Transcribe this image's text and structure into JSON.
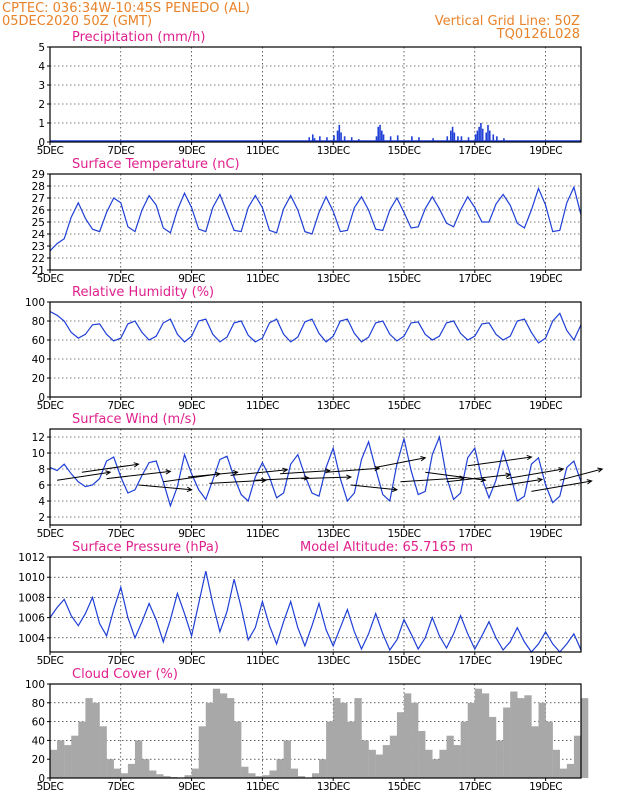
{
  "header": {
    "line1_left": "CPTEC:   036:34W-10:45S   PENEDO (AL)",
    "line2_left": "05DEC2020 50Z (GMT)",
    "line1_right": "Vertical Grid Line: 50Z",
    "line2_right": "TQ0126L028"
  },
  "colors": {
    "header": "#e8832a",
    "title": "#e0208c",
    "line": "#1f3fd6",
    "cloud": "#a8a8a8",
    "arrow": "#000000"
  },
  "chart_data": [
    {
      "id": "precip",
      "type": "bar",
      "title": "Precipitation (mm/h)",
      "ylim": [
        0,
        5
      ],
      "yticks": [
        0,
        1,
        2,
        3,
        4,
        5
      ],
      "xlim": [
        0,
        15
      ],
      "xticks": [
        "5DEC",
        "7DEC",
        "9DEC",
        "11DEC",
        "13DEC",
        "15DEC",
        "17DEC",
        "19DEC"
      ],
      "bars": [
        [
          7.3,
          0.25
        ],
        [
          7.4,
          0.4
        ],
        [
          7.45,
          0.2
        ],
        [
          7.6,
          0.3
        ],
        [
          7.8,
          0.25
        ],
        [
          8.0,
          0.35
        ],
        [
          8.1,
          0.6
        ],
        [
          8.15,
          0.9
        ],
        [
          8.2,
          0.5
        ],
        [
          8.3,
          0.3
        ],
        [
          8.5,
          0.25
        ],
        [
          8.7,
          0.15
        ],
        [
          9.2,
          0.3
        ],
        [
          9.25,
          0.8
        ],
        [
          9.3,
          0.9
        ],
        [
          9.35,
          0.6
        ],
        [
          9.4,
          0.4
        ],
        [
          9.6,
          0.3
        ],
        [
          9.8,
          0.35
        ],
        [
          10.2,
          0.3
        ],
        [
          10.4,
          0.25
        ],
        [
          10.8,
          0.2
        ],
        [
          11.2,
          0.3
        ],
        [
          11.3,
          0.6
        ],
        [
          11.35,
          0.8
        ],
        [
          11.4,
          0.5
        ],
        [
          11.5,
          0.3
        ],
        [
          11.6,
          0.3
        ],
        [
          11.8,
          0.25
        ],
        [
          12.0,
          0.4
        ],
        [
          12.05,
          0.6
        ],
        [
          12.1,
          0.8
        ],
        [
          12.15,
          1.0
        ],
        [
          12.2,
          0.7
        ],
        [
          12.3,
          0.5
        ],
        [
          12.35,
          0.9
        ],
        [
          12.4,
          0.6
        ],
        [
          12.5,
          0.4
        ],
        [
          12.6,
          0.3
        ],
        [
          12.8,
          0.2
        ]
      ],
      "baseline_trace": true
    },
    {
      "id": "temp",
      "type": "line",
      "title": "Surface Temperature (nC)",
      "ylim": [
        21,
        29
      ],
      "yticks": [
        21,
        22,
        23,
        24,
        25,
        26,
        27,
        28,
        29
      ],
      "xlim": [
        0,
        15
      ],
      "xticks": [
        "5DEC",
        "7DEC",
        "9DEC",
        "11DEC",
        "13DEC",
        "15DEC",
        "17DEC",
        "19DEC"
      ],
      "x": [
        0,
        0.2,
        0.4,
        0.6,
        0.8,
        1.0,
        1.2,
        1.4,
        1.6,
        1.8,
        2.0,
        2.2,
        2.4,
        2.6,
        2.8,
        3.0,
        3.2,
        3.4,
        3.6,
        3.8,
        4.0,
        4.2,
        4.4,
        4.6,
        4.8,
        5.0,
        5.2,
        5.4,
        5.6,
        5.8,
        6.0,
        6.2,
        6.4,
        6.6,
        6.8,
        7.0,
        7.2,
        7.4,
        7.6,
        7.8,
        8.0,
        8.2,
        8.4,
        8.6,
        8.8,
        9.0,
        9.2,
        9.4,
        9.6,
        9.8,
        10.0,
        10.2,
        10.4,
        10.6,
        10.8,
        11.0,
        11.2,
        11.4,
        11.6,
        11.8,
        12.0,
        12.2,
        12.4,
        12.6,
        12.8,
        13.0,
        13.2,
        13.4,
        13.6,
        13.8,
        14.0,
        14.2,
        14.4,
        14.6,
        14.8,
        15.0
      ],
      "y": [
        22.6,
        23.2,
        23.6,
        25.4,
        26.6,
        25.3,
        24.4,
        24.2,
        25.8,
        27.0,
        26.6,
        24.6,
        24.2,
        26.0,
        27.2,
        26.4,
        24.5,
        24.1,
        26.0,
        27.4,
        26.2,
        24.4,
        24.2,
        26.2,
        27.3,
        25.8,
        24.3,
        24.2,
        26.2,
        27.2,
        26.2,
        24.3,
        24.1,
        26.1,
        27.2,
        26.0,
        24.2,
        24.0,
        25.8,
        27.1,
        25.9,
        24.2,
        24.3,
        26.2,
        27.1,
        26.0,
        24.4,
        24.3,
        26.0,
        27.0,
        25.8,
        24.5,
        24.6,
        26.1,
        27.1,
        26.1,
        24.9,
        24.6,
        26.0,
        27.1,
        26.2,
        25.0,
        25.0,
        26.5,
        27.3,
        26.4,
        24.9,
        24.5,
        26.0,
        27.8,
        26.4,
        24.2,
        24.3,
        26.6,
        27.9,
        25.6
      ]
    },
    {
      "id": "rh",
      "type": "line",
      "title": "Relative Humidity (%)",
      "ylim": [
        0,
        100
      ],
      "yticks": [
        0,
        20,
        40,
        60,
        80,
        100
      ],
      "xlim": [
        0,
        15
      ],
      "xticks": [
        "5DEC",
        "7DEC",
        "9DEC",
        "11DEC",
        "13DEC",
        "15DEC",
        "17DEC",
        "19DEC"
      ],
      "x": [
        0,
        0.2,
        0.4,
        0.6,
        0.8,
        1.0,
        1.2,
        1.4,
        1.6,
        1.8,
        2.0,
        2.2,
        2.4,
        2.6,
        2.8,
        3.0,
        3.2,
        3.4,
        3.6,
        3.8,
        4.0,
        4.2,
        4.4,
        4.6,
        4.8,
        5.0,
        5.2,
        5.4,
        5.6,
        5.8,
        6.0,
        6.2,
        6.4,
        6.6,
        6.8,
        7.0,
        7.2,
        7.4,
        7.6,
        7.8,
        8.0,
        8.2,
        8.4,
        8.6,
        8.8,
        9.0,
        9.2,
        9.4,
        9.6,
        9.8,
        10.0,
        10.2,
        10.4,
        10.6,
        10.8,
        11.0,
        11.2,
        11.4,
        11.6,
        11.8,
        12.0,
        12.2,
        12.4,
        12.6,
        12.8,
        13.0,
        13.2,
        13.4,
        13.6,
        13.8,
        14.0,
        14.2,
        14.4,
        14.6,
        14.8,
        15.0
      ],
      "y": [
        90,
        86,
        80,
        68,
        62,
        66,
        76,
        77,
        66,
        59,
        62,
        77,
        80,
        68,
        60,
        64,
        78,
        82,
        66,
        58,
        64,
        80,
        82,
        66,
        58,
        63,
        78,
        80,
        65,
        58,
        62,
        78,
        82,
        66,
        58,
        63,
        79,
        82,
        67,
        58,
        64,
        80,
        82,
        67,
        58,
        63,
        78,
        80,
        66,
        59,
        64,
        78,
        79,
        66,
        60,
        64,
        78,
        80,
        67,
        60,
        64,
        77,
        78,
        66,
        60,
        64,
        80,
        82,
        68,
        57,
        62,
        80,
        88,
        70,
        60,
        76
      ]
    },
    {
      "id": "wind",
      "type": "line",
      "title": "Surface Wind (m/s)",
      "ylim": [
        1,
        13
      ],
      "yticks": [
        2,
        4,
        6,
        8,
        10,
        12
      ],
      "xlim": [
        0,
        15
      ],
      "xticks": [
        "5DEC",
        "7DEC",
        "9DEC",
        "11DEC",
        "13DEC",
        "15DEC",
        "17DEC",
        "19DEC"
      ],
      "x": [
        0,
        0.2,
        0.4,
        0.6,
        0.8,
        1.0,
        1.2,
        1.4,
        1.6,
        1.8,
        2.0,
        2.2,
        2.4,
        2.6,
        2.8,
        3.0,
        3.2,
        3.4,
        3.6,
        3.8,
        4.0,
        4.2,
        4.4,
        4.6,
        4.8,
        5.0,
        5.2,
        5.4,
        5.6,
        5.8,
        6.0,
        6.2,
        6.4,
        6.6,
        6.8,
        7.0,
        7.2,
        7.4,
        7.6,
        7.8,
        8.0,
        8.2,
        8.4,
        8.6,
        8.8,
        9.0,
        9.2,
        9.4,
        9.6,
        9.8,
        10.0,
        10.2,
        10.4,
        10.6,
        10.8,
        11.0,
        11.2,
        11.4,
        11.6,
        11.8,
        12.0,
        12.2,
        12.4,
        12.6,
        12.8,
        13.0,
        13.2,
        13.4,
        13.6,
        13.8,
        14.0,
        14.2,
        14.4,
        14.6,
        14.8,
        15.0
      ],
      "y": [
        8.2,
        7.8,
        8.6,
        7.4,
        6.4,
        5.8,
        6.0,
        6.8,
        9.0,
        9.5,
        7.0,
        5.0,
        5.4,
        7.2,
        8.8,
        9.0,
        6.4,
        3.4,
        5.8,
        9.8,
        7.4,
        5.4,
        4.2,
        6.6,
        9.2,
        9.6,
        7.0,
        4.8,
        4.0,
        7.0,
        8.8,
        7.0,
        4.4,
        5.0,
        8.6,
        9.8,
        7.2,
        5.0,
        4.6,
        8.2,
        10.6,
        6.8,
        4.0,
        5.0,
        9.2,
        11.4,
        8.0,
        4.8,
        4.0,
        8.6,
        11.8,
        7.8,
        4.8,
        5.2,
        9.8,
        12.0,
        7.0,
        4.2,
        5.0,
        9.4,
        10.6,
        6.8,
        4.4,
        6.6,
        10.2,
        7.4,
        4.0,
        4.6,
        8.6,
        9.4,
        6.0,
        3.8,
        4.6,
        8.2,
        9.0,
        6.4
      ],
      "arrows": [
        [
          0.2,
          6.6,
          1.5,
          1.0
        ],
        [
          0.9,
          7.6,
          1.6,
          1.0
        ],
        [
          1.6,
          6.8,
          1.8,
          0.9
        ],
        [
          2.5,
          6.0,
          1.5,
          -0.6
        ],
        [
          3.2,
          6.4,
          1.6,
          1.0
        ],
        [
          3.9,
          7.0,
          1.4,
          0.6
        ],
        [
          4.5,
          6.2,
          1.6,
          0.4
        ],
        [
          5.1,
          7.2,
          1.6,
          0.7
        ],
        [
          5.8,
          6.6,
          1.5,
          0.3
        ],
        [
          6.5,
          7.4,
          1.4,
          0.4
        ],
        [
          7.1,
          6.8,
          1.4,
          0.2
        ],
        [
          7.8,
          7.6,
          1.5,
          0.5
        ],
        [
          8.5,
          6.0,
          1.3,
          -0.6
        ],
        [
          9.2,
          8.2,
          1.4,
          1.2
        ],
        [
          9.9,
          6.4,
          1.8,
          0.5
        ],
        [
          10.6,
          7.6,
          1.7,
          -1.0
        ],
        [
          11.2,
          6.4,
          1.8,
          0.9
        ],
        [
          11.8,
          8.4,
          1.8,
          1.1
        ],
        [
          12.3,
          5.6,
          1.6,
          1.1
        ],
        [
          12.9,
          6.8,
          1.6,
          1.2
        ],
        [
          13.6,
          5.2,
          1.7,
          1.3
        ],
        [
          14.4,
          6.6,
          1.2,
          1.4
        ]
      ]
    },
    {
      "id": "pres",
      "type": "line",
      "title": "Surface Pressure (hPa)",
      "subtitle": "Model Altitude: 65.7165 m",
      "ylim": [
        1002.6,
        1012
      ],
      "yticks": [
        1004,
        1006,
        1008,
        1010,
        1012
      ],
      "xlim": [
        0,
        15
      ],
      "xticks": [
        "5DEC",
        "7DEC",
        "9DEC",
        "11DEC",
        "13DEC",
        "15DEC",
        "17DEC",
        "19DEC"
      ],
      "x": [
        0,
        0.2,
        0.4,
        0.6,
        0.8,
        1.0,
        1.2,
        1.4,
        1.6,
        1.8,
        2.0,
        2.2,
        2.4,
        2.6,
        2.8,
        3.0,
        3.2,
        3.4,
        3.6,
        3.8,
        4.0,
        4.2,
        4.4,
        4.6,
        4.8,
        5.0,
        5.2,
        5.4,
        5.6,
        5.8,
        6.0,
        6.2,
        6.4,
        6.6,
        6.8,
        7.0,
        7.2,
        7.4,
        7.6,
        7.8,
        8.0,
        8.2,
        8.4,
        8.6,
        8.8,
        9.0,
        9.2,
        9.4,
        9.6,
        9.8,
        10.0,
        10.2,
        10.4,
        10.6,
        10.8,
        11.0,
        11.2,
        11.4,
        11.6,
        11.8,
        12.0,
        12.2,
        12.4,
        12.6,
        12.8,
        13.0,
        13.2,
        13.4,
        13.6,
        13.8,
        14.0,
        14.2,
        14.4,
        14.6,
        14.8,
        15.0
      ],
      "y": [
        1006.0,
        1007.0,
        1007.8,
        1006.2,
        1005.2,
        1006.4,
        1008.0,
        1005.4,
        1004.2,
        1006.8,
        1009.0,
        1006.0,
        1004.0,
        1005.6,
        1007.4,
        1005.8,
        1003.6,
        1005.8,
        1008.4,
        1006.4,
        1004.2,
        1007.4,
        1010.6,
        1007.4,
        1004.6,
        1006.6,
        1009.8,
        1007.0,
        1003.8,
        1005.0,
        1007.6,
        1005.2,
        1003.4,
        1005.6,
        1007.6,
        1005.0,
        1003.2,
        1005.2,
        1007.4,
        1004.8,
        1003.2,
        1005.0,
        1006.8,
        1004.6,
        1002.9,
        1004.4,
        1006.4,
        1004.4,
        1002.8,
        1003.8,
        1005.8,
        1004.4,
        1002.9,
        1004.0,
        1006.0,
        1004.2,
        1003.0,
        1004.4,
        1006.2,
        1004.4,
        1002.9,
        1004.2,
        1005.6,
        1004.0,
        1002.8,
        1003.6,
        1005.0,
        1003.6,
        1002.6,
        1003.4,
        1004.6,
        1003.4,
        1002.6,
        1003.4,
        1004.4,
        1002.8
      ]
    },
    {
      "id": "cloud",
      "type": "bar",
      "title": "Cloud Cover (%)",
      "ylim": [
        0,
        100
      ],
      "yticks": [
        0,
        20,
        40,
        60,
        80,
        100
      ],
      "xlim": [
        0,
        15
      ],
      "xticks": [
        "5DEC",
        "7DEC",
        "9DEC",
        "11DEC",
        "13DEC",
        "15DEC",
        "17DEC",
        "19DEC"
      ],
      "x": [
        0,
        0.2,
        0.4,
        0.6,
        0.8,
        1.0,
        1.2,
        1.4,
        1.6,
        1.8,
        2.0,
        2.2,
        2.4,
        2.6,
        2.8,
        3.0,
        3.2,
        3.4,
        3.6,
        3.8,
        4.0,
        4.2,
        4.4,
        4.6,
        4.8,
        5.0,
        5.2,
        5.4,
        5.6,
        5.8,
        6.0,
        6.2,
        6.4,
        6.6,
        6.8,
        7.0,
        7.2,
        7.4,
        7.6,
        7.8,
        8.0,
        8.2,
        8.4,
        8.6,
        8.8,
        9.0,
        9.2,
        9.4,
        9.6,
        9.8,
        10.0,
        10.2,
        10.4,
        10.6,
        10.8,
        11.0,
        11.2,
        11.4,
        11.6,
        11.8,
        12.0,
        12.2,
        12.4,
        12.6,
        12.8,
        13.0,
        13.2,
        13.4,
        13.6,
        13.8,
        14.0,
        14.2,
        14.4,
        14.6,
        14.8,
        15.0
      ],
      "values": [
        30,
        40,
        35,
        45,
        60,
        85,
        80,
        55,
        20,
        10,
        5,
        15,
        40,
        20,
        8,
        4,
        2,
        1,
        0,
        3,
        10,
        55,
        80,
        95,
        90,
        85,
        60,
        12,
        5,
        2,
        3,
        8,
        20,
        40,
        10,
        2,
        0,
        5,
        20,
        60,
        85,
        80,
        60,
        85,
        40,
        30,
        25,
        35,
        45,
        70,
        90,
        80,
        50,
        30,
        20,
        30,
        45,
        35,
        60,
        80,
        95,
        90,
        65,
        40,
        75,
        92,
        85,
        88,
        55,
        80,
        60,
        30,
        10,
        15,
        45,
        85
      ]
    }
  ]
}
